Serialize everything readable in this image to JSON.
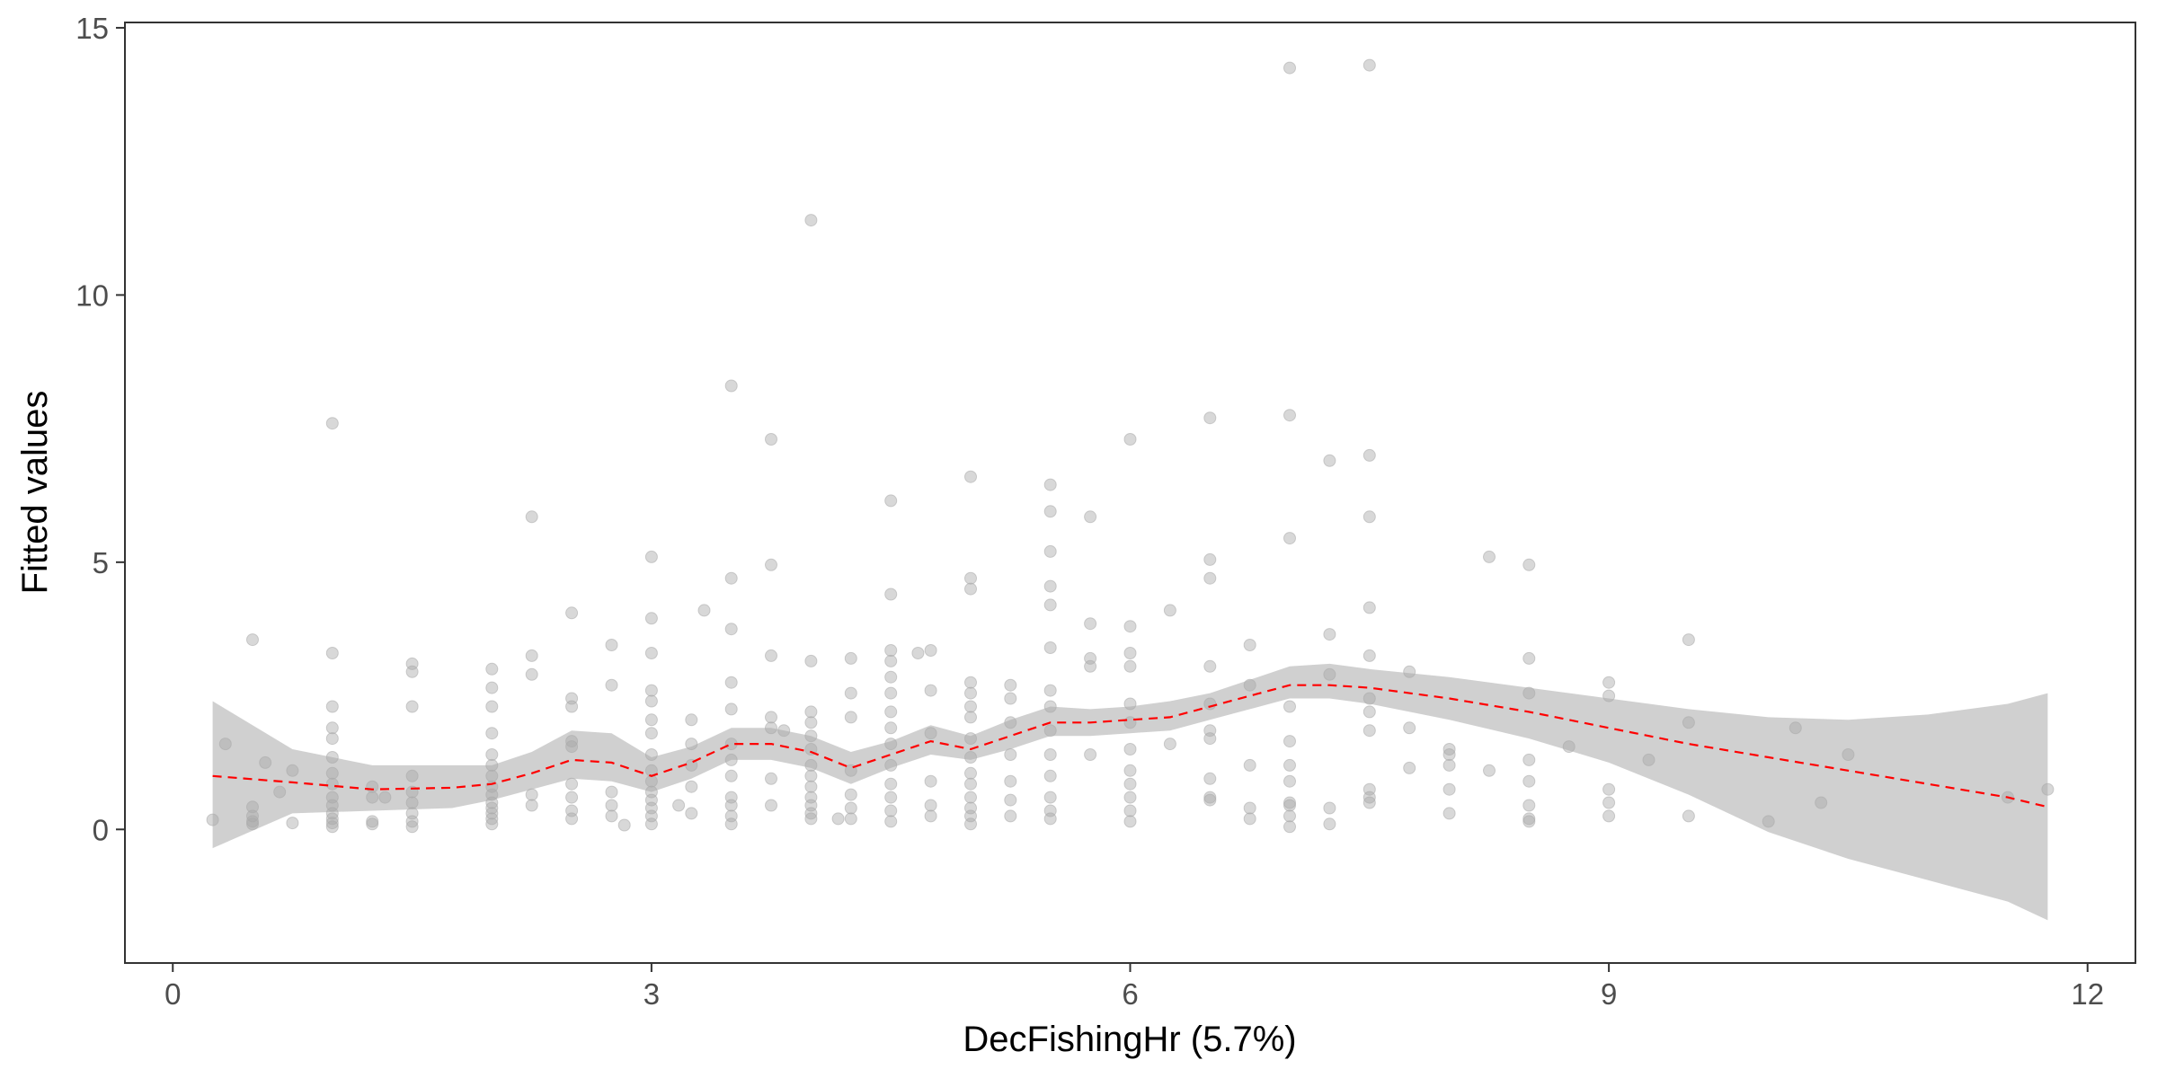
{
  "chart_data": {
    "type": "scatter",
    "title": "",
    "xlabel": "DecFishingHr  (5.7%)",
    "ylabel": "Fitted values",
    "xlim": [
      -0.3,
      12.3
    ],
    "ylim": [
      -2.5,
      15.1
    ],
    "x_ticks": [
      0,
      3,
      6,
      9,
      12
    ],
    "y_ticks": [
      0,
      5,
      10,
      15
    ],
    "x_tick_labels": [
      "0",
      "3",
      "6",
      "9",
      "12"
    ],
    "y_tick_labels": [
      "0",
      "5",
      "10",
      "15"
    ],
    "grid": false,
    "colors": {
      "points": "#a9a9a9",
      "smooth_line": "#ff0000",
      "confidence_band": "#bebebe",
      "axis": "#333333",
      "tick_text": "#4d4d4d"
    },
    "series": [
      {
        "kind": "points",
        "x": [
          0.25,
          0.33,
          0.5,
          0.5,
          0.5,
          0.5,
          0.5,
          0.58,
          0.67,
          0.75,
          0.75,
          1,
          1,
          1,
          1,
          1,
          1,
          1,
          1,
          1,
          1,
          1,
          1,
          1,
          1,
          1.25,
          1.25,
          1.25,
          1.25,
          1.33,
          1.5,
          1.5,
          1.5,
          1.5,
          1.5,
          1.5,
          1.5,
          1.5,
          1.5,
          2,
          2,
          2,
          2,
          2,
          2,
          2,
          2,
          2,
          2,
          2,
          2,
          2,
          2,
          2.25,
          2.25,
          2.25,
          2.25,
          2.25,
          2.5,
          2.5,
          2.5,
          2.5,
          2.5,
          2.5,
          2.5,
          2.5,
          2.5,
          2.75,
          2.75,
          2.75,
          2.75,
          2.75,
          2.83,
          3,
          3,
          3,
          3,
          3,
          3,
          3,
          3,
          3,
          3,
          3,
          3,
          3,
          3,
          3,
          3.17,
          3.25,
          3.25,
          3.25,
          3.25,
          3.25,
          3.33,
          3.5,
          3.5,
          3.5,
          3.5,
          3.5,
          3.5,
          3.5,
          3.5,
          3.5,
          3.5,
          3.5,
          3.5,
          3.75,
          3.75,
          3.75,
          3.75,
          3.75,
          3.75,
          3.75,
          3.83,
          4,
          4,
          4,
          4,
          4,
          4,
          4,
          4,
          4,
          4,
          4,
          4,
          4,
          4.17,
          4.25,
          4.25,
          4.25,
          4.25,
          4.25,
          4.25,
          4.25,
          4.5,
          4.5,
          4.5,
          4.5,
          4.5,
          4.5,
          4.5,
          4.5,
          4.5,
          4.5,
          4.5,
          4.5,
          4.5,
          4.5,
          4.67,
          4.75,
          4.75,
          4.75,
          4.75,
          4.75,
          4.75,
          5,
          5,
          5,
          5,
          5,
          5,
          5,
          5,
          5,
          5,
          5,
          5,
          5,
          5,
          5,
          5.25,
          5.25,
          5.25,
          5.25,
          5.25,
          5.25,
          5.25,
          5.5,
          5.5,
          5.5,
          5.5,
          5.5,
          5.5,
          5.5,
          5.5,
          5.5,
          5.5,
          5.5,
          5.5,
          5.5,
          5.5,
          5.75,
          5.75,
          5.75,
          5.75,
          5.75,
          6,
          6,
          6,
          6,
          6,
          6,
          6,
          6,
          6,
          6,
          6,
          6,
          6.25,
          6.25,
          6.5,
          6.5,
          6.5,
          6.5,
          6.5,
          6.5,
          6.5,
          6.5,
          6.5,
          6.5,
          6.75,
          6.75,
          6.75,
          6.75,
          6.75,
          7,
          7,
          7,
          7,
          7,
          7,
          7,
          7,
          7,
          7,
          7,
          7.25,
          7.25,
          7.25,
          7.25,
          7.25,
          7.5,
          7.5,
          7.5,
          7.5,
          7.5,
          7.5,
          7.5,
          7.5,
          7.5,
          7.5,
          7.5,
          7.75,
          7.75,
          7.75,
          8,
          8,
          8,
          8,
          8,
          8.25,
          8.25,
          8.5,
          8.5,
          8.5,
          8.5,
          8.5,
          8.5,
          8.5,
          8.5,
          8.75,
          9,
          9,
          9,
          9,
          9,
          9.25,
          9.5,
          9.5,
          9.5,
          10,
          10.17,
          10.33,
          10.5,
          11.5,
          11.75
        ],
        "y": [
          0.18,
          1.6,
          3.55,
          0.42,
          0.25,
          0.15,
          0.1,
          1.25,
          0.7,
          1.1,
          0.12,
          7.6,
          3.3,
          2.3,
          1.9,
          1.7,
          1.35,
          1.05,
          0.85,
          0.6,
          0.45,
          0.3,
          0.2,
          0.12,
          0.05,
          0.8,
          0.6,
          0.15,
          0.1,
          0.6,
          3.1,
          2.95,
          2.3,
          1.0,
          0.7,
          0.5,
          0.3,
          0.15,
          0.05,
          3.0,
          2.65,
          2.3,
          1.8,
          1.4,
          1.2,
          1.0,
          0.8,
          0.65,
          0.5,
          0.4,
          0.3,
          0.2,
          0.1,
          5.85,
          3.25,
          2.9,
          0.65,
          0.45,
          4.05,
          2.45,
          2.3,
          1.65,
          1.55,
          0.85,
          0.6,
          0.35,
          0.2,
          3.45,
          2.7,
          0.7,
          0.45,
          0.25,
          0.08,
          5.1,
          3.95,
          3.3,
          2.6,
          2.4,
          2.05,
          1.8,
          1.4,
          1.1,
          0.9,
          0.7,
          0.55,
          0.4,
          0.25,
          0.1,
          0.45,
          2.05,
          1.6,
          1.2,
          0.8,
          0.3,
          4.1,
          8.3,
          4.7,
          3.75,
          2.75,
          2.25,
          1.6,
          1.3,
          1.0,
          0.6,
          0.45,
          0.25,
          0.1,
          7.3,
          4.95,
          3.25,
          2.1,
          1.9,
          0.95,
          0.45,
          1.85,
          11.4,
          3.15,
          2.2,
          2.0,
          1.75,
          1.5,
          1.2,
          1.0,
          0.8,
          0.6,
          0.45,
          0.3,
          0.2,
          0.2,
          3.2,
          2.55,
          2.1,
          1.1,
          0.65,
          0.4,
          0.2,
          6.15,
          4.4,
          3.35,
          3.15,
          2.85,
          2.55,
          2.2,
          1.9,
          1.6,
          1.2,
          0.85,
          0.6,
          0.35,
          0.15,
          3.3,
          3.35,
          2.6,
          1.8,
          0.9,
          0.45,
          0.25,
          6.6,
          4.7,
          4.5,
          2.75,
          2.55,
          2.3,
          2.1,
          1.7,
          1.35,
          1.05,
          0.85,
          0.6,
          0.4,
          0.25,
          0.1,
          2.7,
          2.45,
          2.0,
          1.4,
          0.9,
          0.55,
          0.25,
          6.45,
          5.95,
          5.2,
          4.55,
          4.2,
          3.4,
          2.6,
          2.3,
          1.85,
          1.4,
          1.0,
          0.6,
          0.35,
          0.2,
          5.85,
          3.85,
          3.2,
          3.05,
          1.4,
          7.3,
          3.8,
          3.3,
          3.05,
          2.35,
          2.0,
          1.5,
          1.1,
          0.85,
          0.6,
          0.35,
          0.15,
          4.1,
          1.6,
          7.7,
          5.05,
          4.7,
          3.05,
          2.35,
          1.85,
          1.7,
          0.95,
          0.6,
          0.55,
          3.45,
          2.7,
          1.2,
          0.4,
          0.2,
          14.25,
          7.75,
          5.45,
          2.3,
          1.65,
          1.2,
          0.9,
          0.5,
          0.45,
          0.25,
          0.05,
          6.9,
          3.65,
          2.9,
          0.4,
          0.1,
          14.3,
          7.0,
          5.85,
          4.15,
          3.25,
          2.45,
          2.2,
          1.85,
          0.75,
          0.6,
          0.5,
          2.95,
          1.9,
          1.15,
          1.5,
          1.4,
          1.2,
          0.75,
          0.3,
          5.1,
          1.1,
          4.95,
          3.2,
          2.55,
          1.3,
          0.9,
          0.45,
          0.2,
          0.15,
          1.55,
          2.75,
          2.5,
          0.75,
          0.5,
          0.25,
          1.3,
          3.55,
          2.0,
          0.25,
          0.15,
          1.9,
          0.5,
          1.4,
          0.6,
          0.75
        ]
      },
      {
        "kind": "smooth",
        "x": [
          0.25,
          0.75,
          1.25,
          1.75,
          2,
          2.25,
          2.5,
          2.75,
          3,
          3.25,
          3.5,
          3.75,
          4,
          4.25,
          4.5,
          4.75,
          5,
          5.25,
          5.5,
          5.75,
          6,
          6.25,
          6.5,
          6.75,
          7,
          7.25,
          7.5,
          8,
          8.5,
          9,
          9.5,
          10,
          10.5,
          11,
          11.5,
          11.75
        ],
        "y": [
          1.0,
          0.88,
          0.75,
          0.78,
          0.85,
          1.05,
          1.3,
          1.25,
          1.0,
          1.25,
          1.6,
          1.6,
          1.45,
          1.15,
          1.4,
          1.65,
          1.5,
          1.75,
          2.0,
          2.0,
          2.05,
          2.1,
          2.3,
          2.5,
          2.7,
          2.7,
          2.65,
          2.45,
          2.2,
          1.9,
          1.6,
          1.35,
          1.1,
          0.85,
          0.6,
          0.42
        ],
        "lower": [
          -0.35,
          0.3,
          0.35,
          0.4,
          0.55,
          0.75,
          0.95,
          0.9,
          0.7,
          0.95,
          1.3,
          1.3,
          1.15,
          0.85,
          1.15,
          1.4,
          1.3,
          1.5,
          1.75,
          1.75,
          1.8,
          1.85,
          2.05,
          2.25,
          2.45,
          2.45,
          2.35,
          2.05,
          1.7,
          1.25,
          0.65,
          -0.05,
          -0.55,
          -0.95,
          -1.35,
          -1.7
        ],
        "upper": [
          2.4,
          1.5,
          1.2,
          1.2,
          1.2,
          1.45,
          1.85,
          1.8,
          1.35,
          1.55,
          1.9,
          1.9,
          1.75,
          1.45,
          1.65,
          1.95,
          1.75,
          2.05,
          2.3,
          2.25,
          2.3,
          2.4,
          2.55,
          2.8,
          3.05,
          3.1,
          3.0,
          2.85,
          2.65,
          2.45,
          2.25,
          2.1,
          2.05,
          2.15,
          2.35,
          2.55
        ]
      }
    ]
  }
}
